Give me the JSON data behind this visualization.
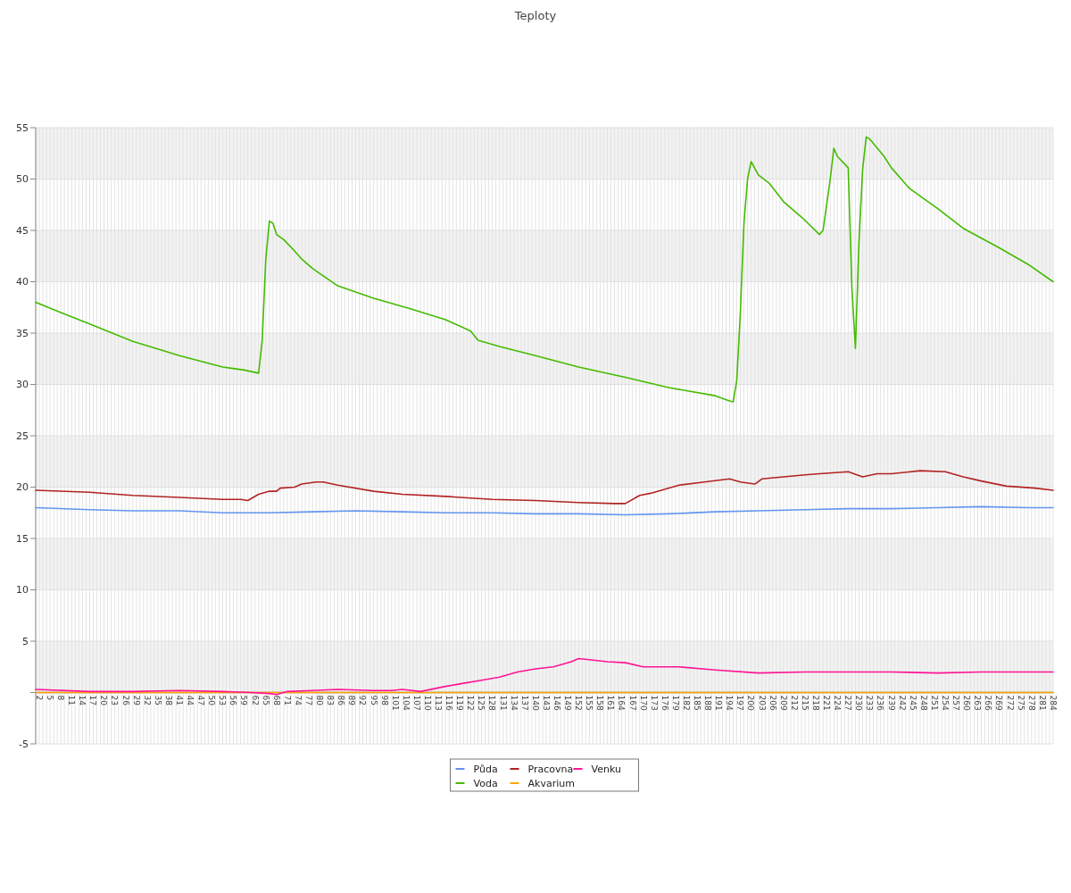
{
  "chart_data": {
    "type": "line",
    "title": "Teploty",
    "xlim": [
      1,
      284
    ],
    "xticks": [
      2,
      5,
      8,
      11,
      14,
      17,
      20,
      23,
      26,
      29,
      32,
      35,
      38,
      41,
      44,
      47,
      50,
      53,
      56,
      59,
      62,
      65,
      68,
      71,
      74,
      77,
      80,
      83,
      86,
      89,
      92,
      95,
      98,
      101,
      104,
      107,
      110,
      113,
      116,
      119,
      122,
      125,
      128,
      131,
      134,
      137,
      140,
      143,
      146,
      149,
      152,
      155,
      158,
      161,
      164,
      167,
      170,
      173,
      176,
      179,
      182,
      185,
      188,
      191,
      194,
      197,
      200,
      203,
      206,
      209,
      212,
      215,
      218,
      221,
      224,
      227,
      230,
      233,
      236,
      239,
      242,
      245,
      248,
      251,
      254,
      257,
      260,
      263,
      266,
      269,
      272,
      275,
      278,
      281,
      284
    ],
    "ylim": [
      -5,
      55
    ],
    "yticks": [
      -5,
      {
        "value": 0,
        "label": null
      },
      5,
      10,
      15,
      20,
      25,
      30,
      35,
      40,
      45,
      50,
      55
    ],
    "grid": true,
    "legend": "bottom",
    "series": [
      {
        "name": "Půda",
        "color": "#6495ed",
        "x": [
          1,
          16,
          28,
          41,
          53,
          66,
          78,
          90,
          103,
          115,
          128,
          140,
          152,
          165,
          177,
          190,
          202,
          215,
          227,
          239,
          252,
          264,
          277,
          284
        ],
        "values": [
          18.0,
          17.8,
          17.7,
          17.7,
          17.5,
          17.5,
          17.6,
          17.7,
          17.6,
          17.5,
          17.5,
          17.4,
          17.4,
          17.3,
          17.4,
          17.6,
          17.7,
          17.8,
          17.9,
          17.9,
          18.0,
          18.1,
          18.0,
          18.0
        ]
      },
      {
        "name": "Voda",
        "color": "#44bb00",
        "x": [
          1,
          8,
          16,
          28,
          41,
          53,
          59,
          63,
          64,
          65,
          66,
          67,
          68,
          70,
          73,
          75,
          78,
          85,
          95,
          105,
          115,
          122,
          124,
          130,
          140,
          152,
          165,
          177,
          190,
          194,
          195,
          196,
          197,
          198,
          199,
          200,
          202,
          205,
          209,
          214,
          219,
          220,
          222,
          223,
          224,
          227,
          228,
          229,
          230,
          231,
          232,
          233,
          237,
          239,
          244,
          252,
          259,
          269,
          277,
          284
        ],
        "values": [
          38.0,
          37.0,
          35.9,
          34.2,
          32.8,
          31.7,
          31.4,
          31.1,
          34.3,
          42.2,
          45.9,
          45.7,
          44.6,
          44.1,
          43.0,
          42.2,
          41.3,
          39.6,
          38.4,
          37.4,
          36.3,
          35.2,
          34.3,
          33.7,
          32.8,
          31.7,
          30.7,
          29.7,
          28.9,
          28.4,
          28.3,
          30.4,
          37.0,
          45.7,
          50.0,
          51.7,
          50.4,
          49.6,
          47.8,
          46.3,
          44.6,
          45.0,
          50.0,
          53.0,
          52.2,
          51.1,
          39.6,
          33.5,
          43.9,
          50.9,
          54.1,
          53.9,
          52.2,
          51.1,
          49.1,
          47.1,
          45.2,
          43.3,
          41.7,
          40.0
        ]
      },
      {
        "name": "Pracovna",
        "color": "#b22222",
        "x": [
          1,
          16,
          28,
          41,
          53,
          58,
          60,
          63,
          66,
          68,
          69,
          73,
          75,
          79,
          81,
          85,
          95,
          103,
          115,
          128,
          140,
          152,
          162,
          165,
          169,
          172,
          175,
          180,
          187,
          194,
          197,
          201,
          203,
          209,
          215,
          219,
          227,
          231,
          235,
          239,
          247,
          254,
          259,
          264,
          271,
          279,
          284
        ],
        "values": [
          19.7,
          19.5,
          19.2,
          19.0,
          18.8,
          18.8,
          18.7,
          19.3,
          19.6,
          19.6,
          19.9,
          20.0,
          20.3,
          20.5,
          20.5,
          20.2,
          19.6,
          19.3,
          19.1,
          18.8,
          18.7,
          18.5,
          18.4,
          18.4,
          19.2,
          19.4,
          19.7,
          20.2,
          20.5,
          20.8,
          20.5,
          20.3,
          20.8,
          21.0,
          21.2,
          21.3,
          21.5,
          21.0,
          21.3,
          21.3,
          21.6,
          21.5,
          21.0,
          20.6,
          20.1,
          19.9,
          19.7
        ]
      },
      {
        "name": "Akvarium",
        "color": "#ffa500",
        "x": [
          1,
          284
        ],
        "values": [
          0,
          0
        ]
      },
      {
        "name": "Venku",
        "color": "#ff1493",
        "x": [
          1,
          16,
          28,
          41,
          53,
          61,
          66,
          68,
          71,
          78,
          85,
          95,
          100,
          103,
          108,
          115,
          120,
          125,
          130,
          135,
          140,
          145,
          150,
          152,
          155,
          160,
          165,
          170,
          180,
          190,
          202,
          215,
          227,
          239,
          252,
          264,
          284
        ],
        "values": [
          0.3,
          0.1,
          0.1,
          0.2,
          0.1,
          0.0,
          -0.1,
          -0.2,
          0.1,
          0.2,
          0.3,
          0.2,
          0.2,
          0.3,
          0.1,
          0.6,
          0.9,
          1.2,
          1.5,
          2.0,
          2.3,
          2.5,
          3.0,
          3.3,
          3.2,
          3.0,
          2.9,
          2.5,
          2.5,
          2.2,
          1.9,
          2.0,
          2.0,
          2.0,
          1.9,
          2.0,
          2.0
        ]
      }
    ]
  }
}
